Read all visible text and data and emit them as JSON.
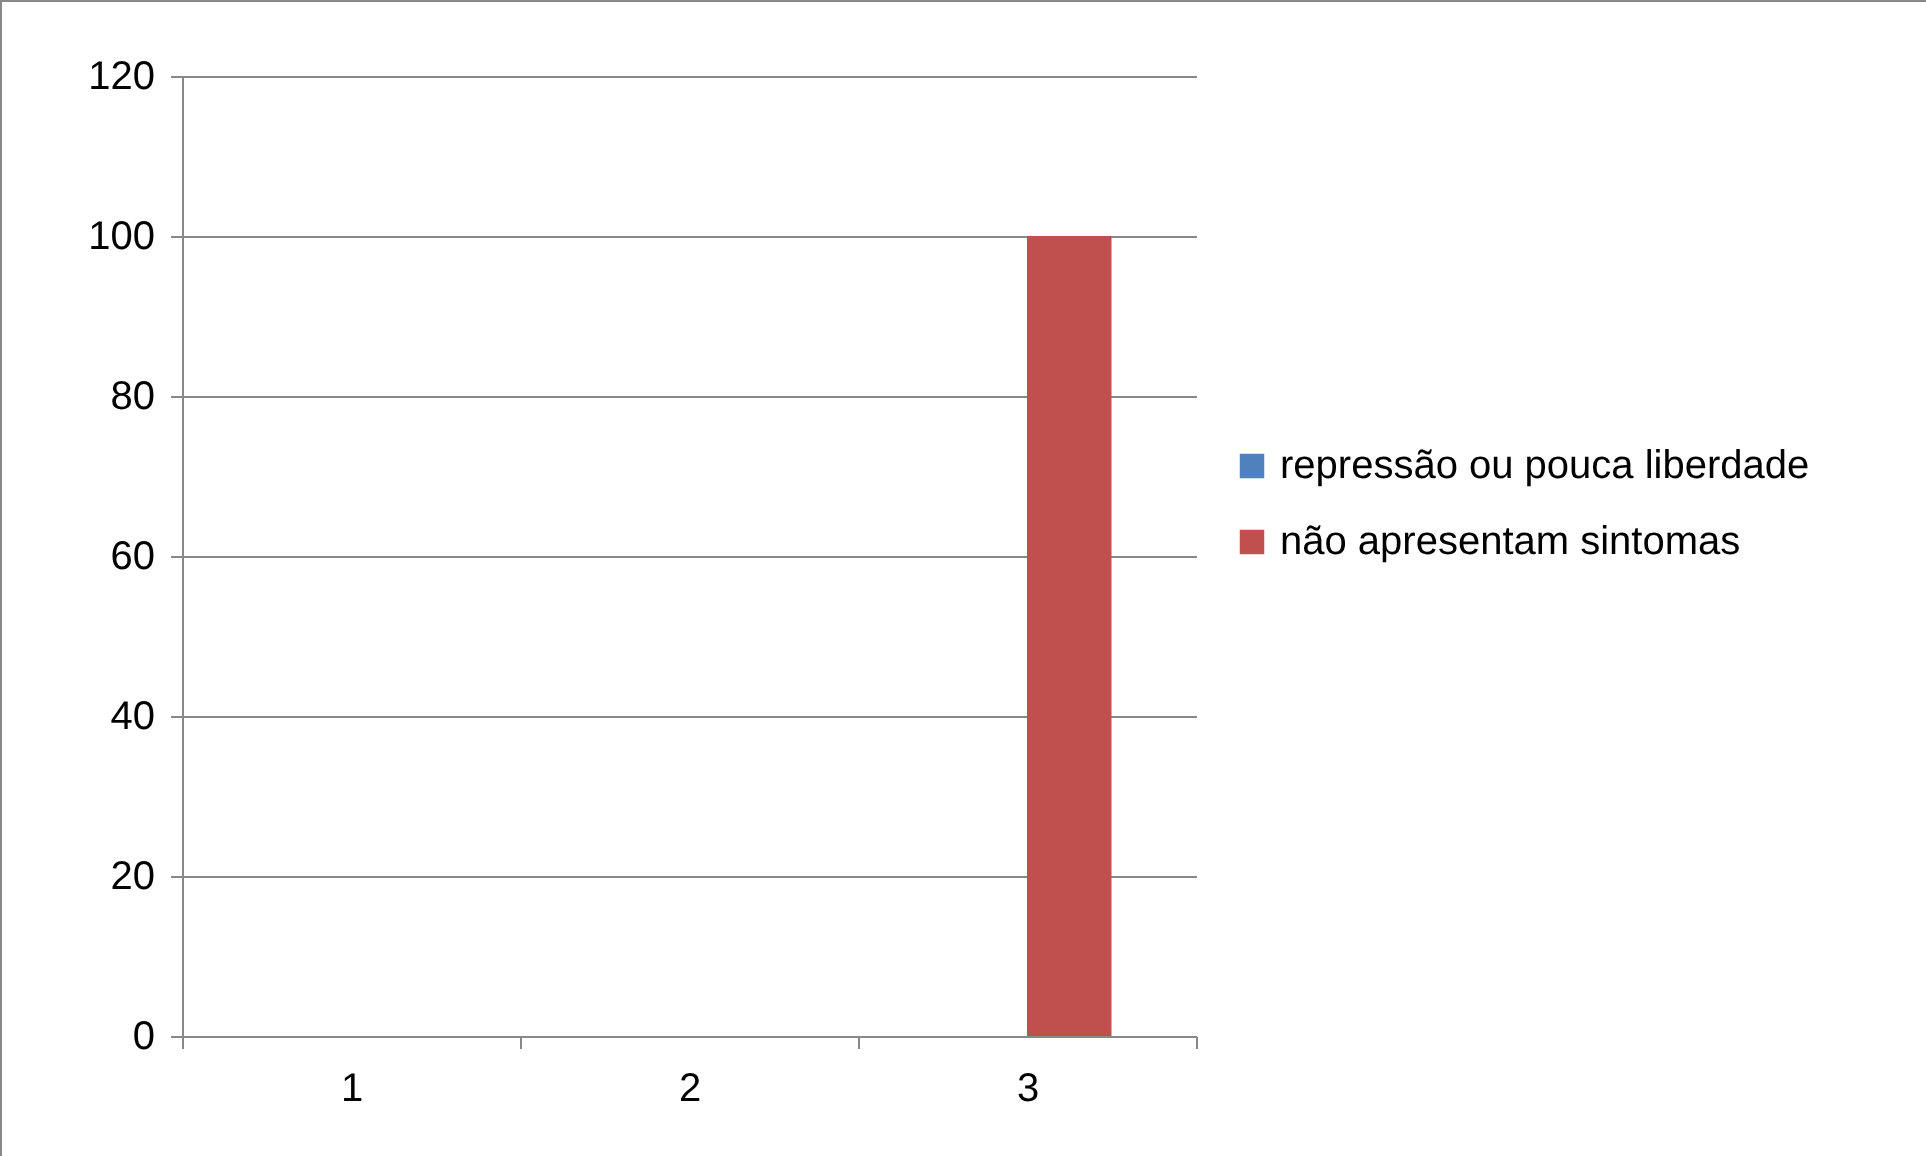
{
  "chart_data": {
    "type": "bar",
    "categories": [
      "1",
      "2",
      "3"
    ],
    "series": [
      {
        "name": "repressão ou pouca liberdade",
        "color": "#4f81bd",
        "values": [
          0,
          0,
          0
        ]
      },
      {
        "name": "não apresentam sintomas",
        "color": "#c0504d",
        "values": [
          0,
          0,
          100
        ]
      }
    ],
    "ylim": [
      0,
      120
    ],
    "yticks": [
      0,
      20,
      40,
      60,
      80,
      100,
      120
    ],
    "grid": "y",
    "legend": "right"
  }
}
